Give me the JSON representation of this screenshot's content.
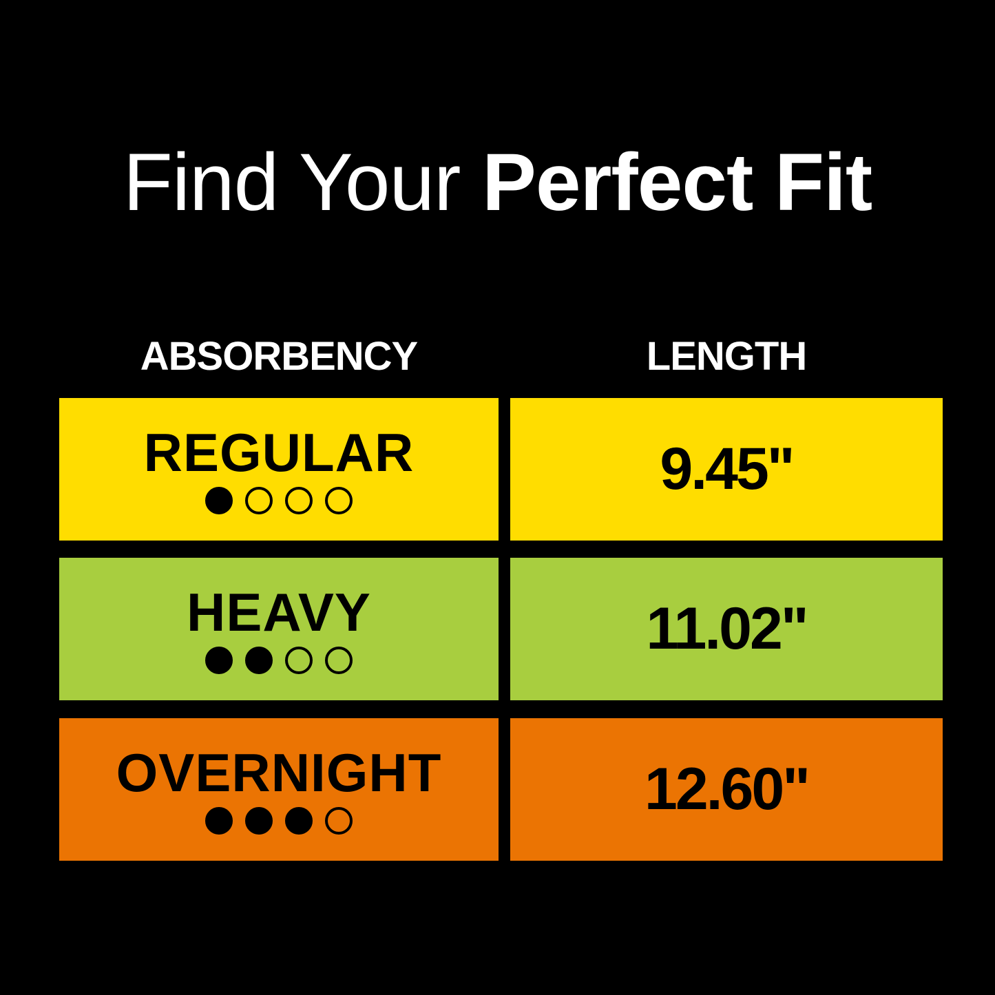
{
  "title": {
    "light": "Find Your ",
    "bold": "Perfect Fit"
  },
  "headers": {
    "absorbency": "ABSORBENCY",
    "length": "LENGTH"
  },
  "rows": [
    {
      "absorbency": "REGULAR",
      "level": 1,
      "max_level": 4,
      "length": "9.45\"",
      "color": "#FFDD00"
    },
    {
      "absorbency": "HEAVY",
      "level": 2,
      "max_level": 4,
      "length": "11.02\"",
      "color": "#A8CE3F"
    },
    {
      "absorbency": "OVERNIGHT",
      "level": 3,
      "max_level": 4,
      "length": "12.60\"",
      "color": "#EB7403"
    }
  ]
}
